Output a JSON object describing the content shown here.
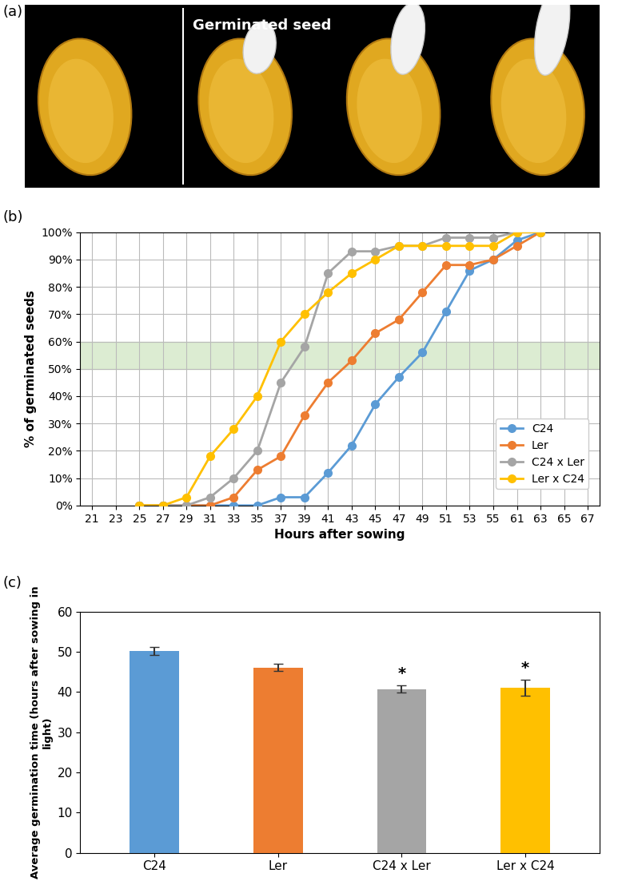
{
  "image_panel": {
    "panel_label": "(a)",
    "text": "Germinated seed"
  },
  "chart_data": [
    {
      "type": "line",
      "panel_label": "(b)",
      "x_label": "Hours after sowing",
      "y_label": "% of germinated seeds",
      "categories": [
        "21",
        "23",
        "25",
        "27",
        "29",
        "31",
        "33",
        "35",
        "37",
        "39",
        "41",
        "43",
        "45",
        "47",
        "49",
        "51",
        "53",
        "55",
        "61",
        "63",
        "65",
        "67"
      ],
      "series": [
        {
          "name": "C24",
          "color": "#5B9BD5",
          "marker": "o",
          "line_style": "solid",
          "values": [
            null,
            null,
            0,
            0,
            0,
            0,
            0,
            0,
            3,
            3,
            12,
            22,
            37,
            47,
            56,
            71,
            86,
            90,
            97,
            100,
            null,
            null
          ]
        },
        {
          "name": "Ler",
          "color": "#ED7D31",
          "marker": "o",
          "line_style": "solid",
          "values": [
            null,
            null,
            0,
            0,
            0,
            0,
            3,
            13,
            18,
            33,
            45,
            53,
            63,
            68,
            78,
            88,
            88,
            90,
            95,
            100,
            null,
            null
          ]
        },
        {
          "name": "C24 x Ler",
          "color": "#A5A5A5",
          "marker": "o",
          "line_style": "solid",
          "values": [
            null,
            null,
            0,
            0,
            0,
            3,
            10,
            20,
            45,
            58,
            85,
            93,
            93,
            95,
            95,
            98,
            98,
            98,
            100,
            100,
            null,
            null
          ]
        },
        {
          "name": "Ler x C24",
          "color": "#FFC000",
          "marker": "o",
          "line_style": "solid",
          "values": [
            null,
            null,
            0,
            0,
            3,
            18,
            28,
            40,
            60,
            70,
            78,
            85,
            90,
            95,
            95,
            95,
            95,
            95,
            100,
            100,
            null,
            null
          ]
        }
      ],
      "highlight_band": [
        50,
        60
      ],
      "ylim": [
        0,
        100
      ],
      "yticks": [
        {
          "value": 0,
          "label": "0%"
        },
        {
          "value": 10,
          "label": "10%"
        },
        {
          "value": 20,
          "label": "20%"
        },
        {
          "value": 30,
          "label": "30%"
        },
        {
          "value": 40,
          "label": "40%"
        },
        {
          "value": 50,
          "label": "50%"
        },
        {
          "value": 60,
          "label": "60%"
        },
        {
          "value": 70,
          "label": "70%"
        },
        {
          "value": 80,
          "label": "80%"
        },
        {
          "value": 90,
          "label": "90%"
        },
        {
          "value": 100,
          "label": "100%"
        }
      ],
      "grid": true,
      "legend": "lower right"
    },
    {
      "type": "bar",
      "panel_label": "(c)",
      "y_label": "Average germination time (hours after sowing in light)",
      "categories": [
        "C24",
        "Ler",
        "C24 x Ler",
        "Ler x C24"
      ],
      "values": [
        50.3,
        46.1,
        40.7,
        41.1
      ],
      "errors": [
        1.0,
        0.9,
        0.9,
        2.0
      ],
      "bar_annotations": [
        null,
        null,
        "*",
        "*"
      ],
      "colors": [
        "#5B9BD5",
        "#ED7D31",
        "#A5A5A5",
        "#FFC000"
      ],
      "ylim": [
        0,
        60
      ],
      "yticks": [
        0,
        10,
        20,
        30,
        40,
        50,
        60
      ],
      "grid": false
    }
  ]
}
